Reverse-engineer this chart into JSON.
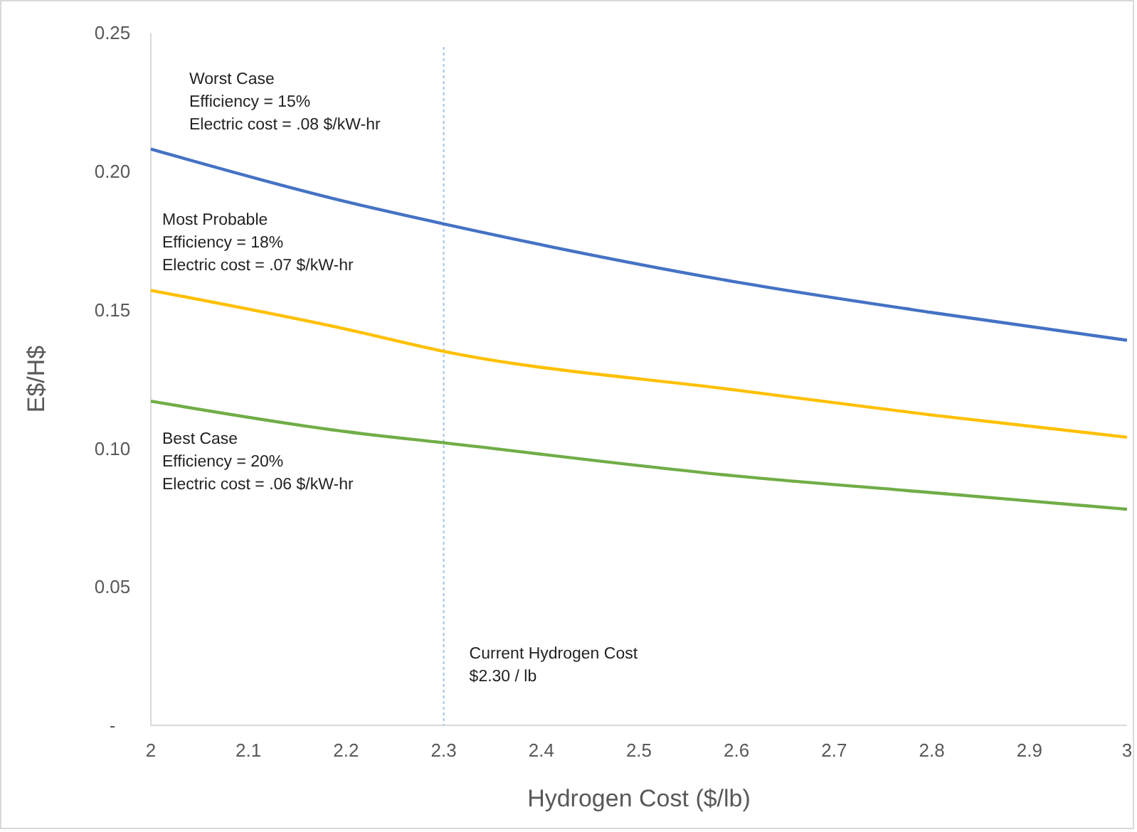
{
  "chart_data": {
    "type": "line",
    "xlabel": "Hydrogen Cost ($/lb)",
    "ylabel": "E$/H$",
    "x": [
      2,
      2.2,
      2.3,
      2.6,
      2.8,
      3
    ],
    "series": [
      {
        "name": "Worst Case\nEfficiency = 15%\nElectric cost = .08 $/kW-hr",
        "color": "#4472c4",
        "values": [
          0.208,
          0.189,
          0.181,
          0.16,
          0.149,
          0.139
        ]
      },
      {
        "name": "Most Probable\nEfficiency = 18%\nElectric cost = .07 $/kW-hr",
        "color": "#ffc000",
        "values": [
          0.157,
          0.143,
          0.135,
          0.121,
          0.112,
          0.104
        ]
      },
      {
        "name": "Best Case\nEfficiency = 20%\nElectric cost = .06 $/kW-hr",
        "color": "#70ad47",
        "values": [
          0.117,
          0.106,
          0.102,
          0.09,
          0.084,
          0.078
        ]
      }
    ],
    "xlim": [
      2,
      3
    ],
    "xticks": [
      2,
      2.1,
      2.2,
      2.3,
      2.4,
      2.5,
      2.6,
      2.7,
      2.8,
      2.9,
      3
    ],
    "ylim": [
      0,
      0.25
    ],
    "yticks": [
      {
        "value": 0,
        "label": "-"
      },
      {
        "value": 0.05,
        "label": "0.05"
      },
      {
        "value": 0.1,
        "label": "0.10"
      },
      {
        "value": 0.15,
        "label": "0.15"
      },
      {
        "value": 0.2,
        "label": "0.20"
      },
      {
        "value": 0.25,
        "label": "0.25"
      }
    ],
    "ref_lines": [
      {
        "axis": "x",
        "value": 2.3,
        "label": "Current Hydrogen Cost\n$2.30 / lb",
        "color": "#9dc3e6",
        "line_style": "dotted"
      }
    ],
    "grid": false,
    "marker": "none",
    "line_style": "solid"
  }
}
